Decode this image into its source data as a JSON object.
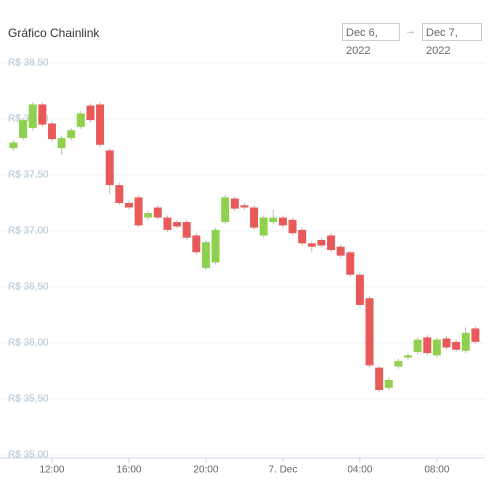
{
  "chart_data": {
    "type": "candlestick",
    "title": "Gráfico Chainlink",
    "date_range": {
      "from": "Dec 6, 2022",
      "separator": "→",
      "to": "Dec 7, 2022"
    },
    "up_color": "#8fd14f",
    "down_color": "#e85a5a",
    "grid": true,
    "x": [
      10,
      10.5,
      11,
      11.5,
      12,
      12.5,
      13,
      13.5,
      14,
      14.5,
      15,
      15.5,
      16,
      16.5,
      17,
      17.5,
      18,
      18.5,
      19,
      19.5,
      20,
      20.5,
      21,
      21.5,
      22,
      22.5,
      23,
      23.5,
      24,
      24.5,
      25,
      25.5,
      26,
      26.5,
      27,
      27.5,
      28,
      28.5,
      29,
      29.5,
      30,
      30.5,
      31,
      31.5,
      32,
      32.5,
      33,
      33.5,
      34
    ],
    "open": [
      37.74,
      37.83,
      37.92,
      38.13,
      37.96,
      37.74,
      37.83,
      37.93,
      38.12,
      38.13,
      37.72,
      37.41,
      37.25,
      37.3,
      37.12,
      37.21,
      37.12,
      37.08,
      37.08,
      36.96,
      36.67,
      36.72,
      37.08,
      37.29,
      37.23,
      37.21,
      36.96,
      37.08,
      37.12,
      37.1,
      37.01,
      36.89,
      36.92,
      36.96,
      36.86,
      36.81,
      36.61,
      36.4,
      35.78,
      35.6,
      35.79,
      35.87,
      35.92,
      36.05,
      35.89,
      36.04,
      36.01,
      35.93,
      36.13
    ],
    "high": [
      37.81,
      38.01,
      38.15,
      38.15,
      37.98,
      37.85,
      37.92,
      38.07,
      38.14,
      38.15,
      37.74,
      37.43,
      37.27,
      37.32,
      37.18,
      37.23,
      37.14,
      37.1,
      37.1,
      36.98,
      36.92,
      37.03,
      37.32,
      37.31,
      37.25,
      37.23,
      37.14,
      37.19,
      37.14,
      37.12,
      37.03,
      36.91,
      36.94,
      36.98,
      36.88,
      36.83,
      36.63,
      36.42,
      35.8,
      35.69,
      35.86,
      35.91,
      36.05,
      36.07,
      36.05,
      36.06,
      36.03,
      36.14,
      36.15
    ],
    "low": [
      37.72,
      37.81,
      37.9,
      37.93,
      37.8,
      37.68,
      37.81,
      37.91,
      37.97,
      37.75,
      37.33,
      37.23,
      37.19,
      37.03,
      37.1,
      37.1,
      36.99,
      37.02,
      36.92,
      36.79,
      36.65,
      36.7,
      37.06,
      37.18,
      37.19,
      37.01,
      36.94,
      37.06,
      37.03,
      36.96,
      36.87,
      36.81,
      36.85,
      36.81,
      36.76,
      36.59,
      36.32,
      35.78,
      35.56,
      35.58,
      35.77,
      35.85,
      35.9,
      35.89,
      35.87,
      35.94,
      35.92,
      35.91,
      35.99
    ],
    "close": [
      37.79,
      37.99,
      38.13,
      37.95,
      37.82,
      37.83,
      37.9,
      38.05,
      37.99,
      37.77,
      37.41,
      37.25,
      37.21,
      37.05,
      37.16,
      37.12,
      37.01,
      37.04,
      36.94,
      36.81,
      36.9,
      37.01,
      37.3,
      37.2,
      37.21,
      37.03,
      37.12,
      37.12,
      37.05,
      36.98,
      36.89,
      36.86,
      36.87,
      36.83,
      36.78,
      36.61,
      36.34,
      35.8,
      35.58,
      35.67,
      35.84,
      35.89,
      36.03,
      35.91,
      36.03,
      35.96,
      35.94,
      36.09,
      36.01
    ],
    "xlim": [
      9.3,
      34.5
    ],
    "xticks": [
      {
        "value": 12,
        "label": "12:00"
      },
      {
        "value": 16,
        "label": "16:00"
      },
      {
        "value": 20,
        "label": "20:00"
      },
      {
        "value": 24,
        "label": "7. Dec"
      },
      {
        "value": 28,
        "label": "04:00"
      },
      {
        "value": 32,
        "label": "08:00"
      }
    ],
    "ylim": [
      35,
      38.5
    ],
    "yticks": [
      {
        "value": 35,
        "label": "R$ 35,00"
      },
      {
        "value": 35.5,
        "label": "R$ 35,50"
      },
      {
        "value": 36,
        "label": "R$ 36,00"
      },
      {
        "value": 36.5,
        "label": "R$ 36,50"
      },
      {
        "value": 37,
        "label": "R$ 37,00"
      },
      {
        "value": 37.5,
        "label": "R$ 37,50"
      },
      {
        "value": 38,
        "label": "R$ 38,00"
      },
      {
        "value": 38.5,
        "label": "R$ 38,50"
      }
    ]
  }
}
